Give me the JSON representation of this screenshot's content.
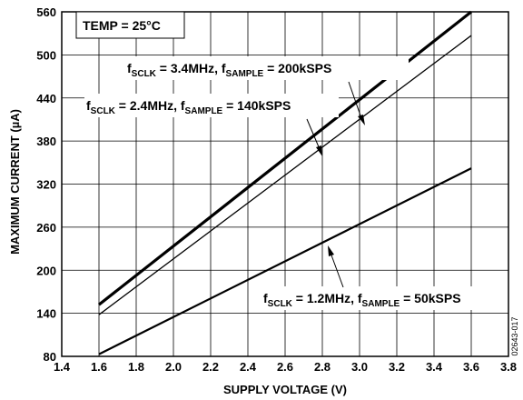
{
  "chart_data": {
    "type": "line",
    "xlabel": "SUPPLY VOLTAGE (V)",
    "ylabel": "MAXIMUM CURRENT (µA)",
    "xlim": [
      1.4,
      3.8
    ],
    "ylim": [
      80,
      560
    ],
    "xticks": [
      "1.4",
      "1.6",
      "1.8",
      "2.0",
      "2.2",
      "2.4",
      "2.6",
      "2.8",
      "3.0",
      "3.2",
      "3.4",
      "3.6",
      "3.8"
    ],
    "yticks": [
      "80",
      "140",
      "200",
      "260",
      "320",
      "380",
      "440",
      "500",
      "560"
    ],
    "grid": true,
    "series": [
      {
        "name": "fSCLK = 3.4MHz, fSAMPLE = 200kSPS",
        "x": [
          1.6,
          3.6
        ],
        "y": [
          152,
          560
        ]
      },
      {
        "name": "fSCLK = 2.4MHz, fSAMPLE = 140kSPS",
        "x": [
          1.6,
          3.6
        ],
        "y": [
          138,
          527
        ]
      },
      {
        "name": "fSCLK = 1.2MHz, fSAMPLE = 50kSPS",
        "x": [
          1.6,
          3.6
        ],
        "y": [
          83,
          342
        ]
      }
    ],
    "annotations": {
      "temp": "TEMP = 25°C",
      "s1": {
        "f1": "f",
        "sub1": "SCLK",
        "mid": " = 3.4MHz, f",
        "sub2": "SAMPLE",
        "end": " = 200kSPS"
      },
      "s2": {
        "f1": "f",
        "sub1": "SCLK",
        "mid": " = 2.4MHz, f",
        "sub2": "SAMPLE",
        "end": " = 140kSPS"
      },
      "s3": {
        "f1": "f",
        "sub1": "SCLK",
        "mid": " = 1.2MHz, f",
        "sub2": "SAMPLE",
        "end": " = 50kSPS"
      }
    },
    "figure_code": "02643-017"
  }
}
